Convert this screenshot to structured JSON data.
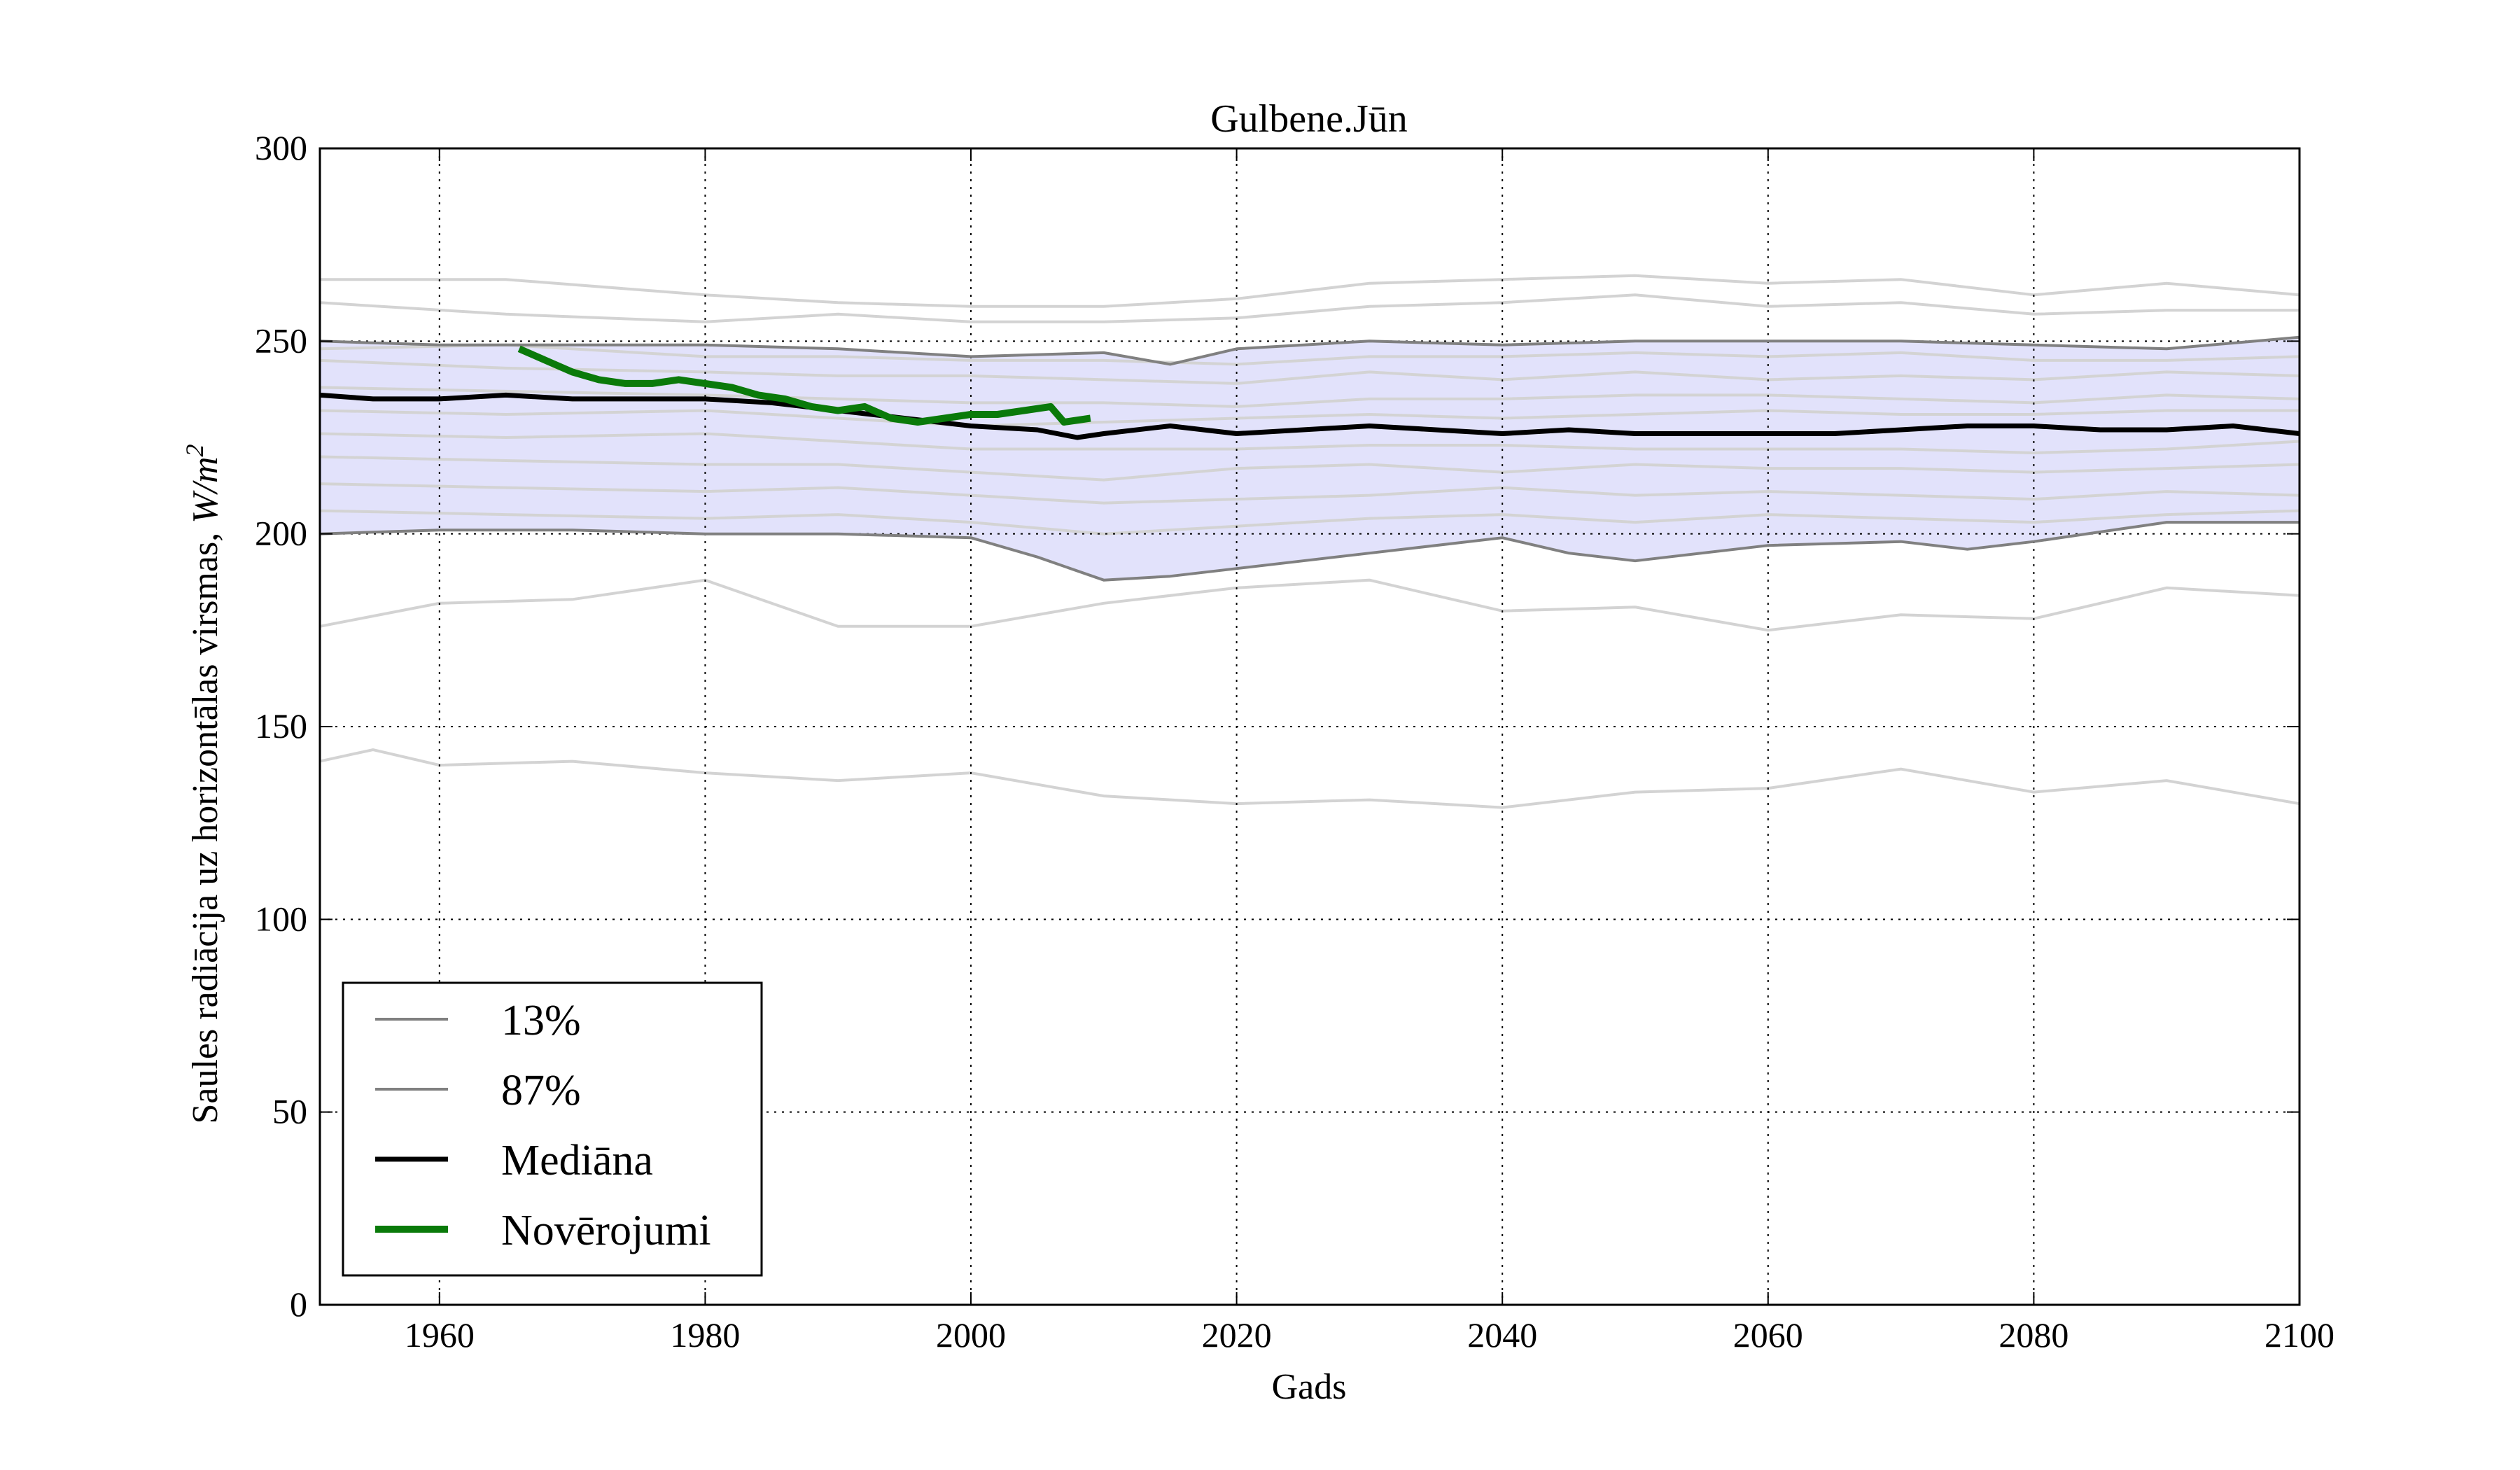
{
  "chart_data": {
    "type": "line",
    "title": "Gulbene.Jūn",
    "xlabel": "Gads",
    "ylabel_text": "Saules radiācija uz horizontālas virsmas, ",
    "ylabel_unit": "W/m",
    "ylabel_unit_sup": "2",
    "xlim": [
      1951,
      2100
    ],
    "ylim": [
      0,
      300
    ],
    "x_ticks": [
      1960,
      1980,
      2000,
      2020,
      2040,
      2060,
      2080,
      2100
    ],
    "y_ticks": [
      0,
      50,
      100,
      150,
      200,
      250,
      300
    ],
    "grid": true,
    "legend_position": "lower-left",
    "legend": [
      "13%",
      "87%",
      "Mediāna",
      "Novērojumi"
    ],
    "colors": {
      "band": "#e2e2fb",
      "percentile": "#808080",
      "median": "#000000",
      "observations": "#0a7a0a",
      "ensemble": "#d3d3d3"
    },
    "series": [
      {
        "name": "87%",
        "x": [
          1951,
          1960,
          1970,
          1980,
          1990,
          2000,
          2010,
          2015,
          2020,
          2030,
          2040,
          2050,
          2060,
          2070,
          2080,
          2090,
          2100
        ],
        "values": [
          250,
          249,
          249,
          249,
          248,
          246,
          247,
          244,
          248,
          250,
          249,
          250,
          250,
          250,
          249,
          248,
          251
        ]
      },
      {
        "name": "13%",
        "x": [
          1951,
          1960,
          1970,
          1980,
          1990,
          2000,
          2005,
          2010,
          2015,
          2020,
          2025,
          2030,
          2040,
          2045,
          2050,
          2060,
          2070,
          2075,
          2080,
          2090,
          2100
        ],
        "values": [
          200,
          201,
          201,
          200,
          200,
          199,
          194,
          188,
          189,
          191,
          193,
          195,
          199,
          195,
          193,
          197,
          198,
          196,
          198,
          203,
          203
        ]
      },
      {
        "name": "Mediāna",
        "x": [
          1951,
          1955,
          1960,
          1965,
          1970,
          1975,
          1980,
          1985,
          1990,
          1995,
          2000,
          2005,
          2008,
          2010,
          2015,
          2020,
          2030,
          2040,
          2045,
          2050,
          2055,
          2060,
          2065,
          2070,
          2075,
          2080,
          2085,
          2090,
          2095,
          2100
        ],
        "values": [
          236,
          235,
          235,
          236,
          235,
          235,
          235,
          234,
          232,
          230,
          228,
          227,
          225,
          226,
          228,
          226,
          228,
          226,
          227,
          226,
          226,
          226,
          226,
          227,
          228,
          228,
          227,
          227,
          228,
          226
        ]
      },
      {
        "name": "Novērojumi",
        "x": [
          1966,
          1968,
          1970,
          1972,
          1974,
          1976,
          1978,
          1980,
          1982,
          1984,
          1986,
          1988,
          1990,
          1992,
          1994,
          1996,
          1998,
          2000,
          2002,
          2004,
          2006,
          2007,
          2009
        ],
        "values": [
          248,
          245,
          242,
          240,
          239,
          239,
          240,
          239,
          238,
          236,
          235,
          233,
          232,
          233,
          230,
          229,
          230,
          231,
          231,
          232,
          233,
          229,
          230
        ]
      }
    ],
    "ensemble": [
      {
        "x": [
          1951,
          1965,
          1980,
          1990,
          2000,
          2010,
          2020,
          2030,
          2040,
          2050,
          2060,
          2070,
          2080,
          2090,
          2100
        ],
        "values": [
          266,
          266,
          262,
          260,
          259,
          259,
          261,
          265,
          266,
          267,
          265,
          266,
          262,
          265,
          262
        ]
      },
      {
        "x": [
          1951,
          1965,
          1980,
          1990,
          2000,
          2010,
          2020,
          2030,
          2040,
          2050,
          2060,
          2070,
          2080,
          2090,
          2100
        ],
        "values": [
          260,
          257,
          255,
          257,
          255,
          255,
          256,
          259,
          260,
          262,
          259,
          260,
          257,
          258,
          258
        ]
      },
      {
        "x": [
          1951,
          1965,
          1980,
          1990,
          2000,
          2010,
          2020,
          2030,
          2040,
          2050,
          2060,
          2070,
          2080,
          2090,
          2100
        ],
        "values": [
          248,
          249,
          246,
          246,
          245,
          245,
          244,
          246,
          246,
          247,
          246,
          247,
          245,
          245,
          246
        ]
      },
      {
        "x": [
          1951,
          1965,
          1980,
          1990,
          2000,
          2010,
          2020,
          2030,
          2040,
          2050,
          2060,
          2070,
          2080,
          2090,
          2100
        ],
        "values": [
          245,
          243,
          242,
          241,
          241,
          240,
          239,
          242,
          240,
          242,
          240,
          241,
          240,
          242,
          241
        ]
      },
      {
        "x": [
          1951,
          1965,
          1980,
          1990,
          2000,
          2010,
          2020,
          2030,
          2040,
          2050,
          2060,
          2070,
          2080,
          2090,
          2100
        ],
        "values": [
          238,
          237,
          236,
          235,
          234,
          234,
          233,
          235,
          235,
          236,
          236,
          235,
          234,
          236,
          235
        ]
      },
      {
        "x": [
          1951,
          1965,
          1980,
          1990,
          2000,
          2010,
          2020,
          2030,
          2040,
          2050,
          2060,
          2070,
          2080,
          2090,
          2100
        ],
        "values": [
          232,
          231,
          232,
          230,
          228,
          229,
          230,
          231,
          230,
          231,
          232,
          231,
          231,
          232,
          232
        ]
      },
      {
        "x": [
          1951,
          1965,
          1980,
          1990,
          2000,
          2010,
          2020,
          2030,
          2040,
          2050,
          2060,
          2070,
          2080,
          2090,
          2100
        ],
        "values": [
          226,
          225,
          226,
          224,
          222,
          222,
          222,
          223,
          223,
          222,
          222,
          222,
          221,
          222,
          224
        ]
      },
      {
        "x": [
          1951,
          1965,
          1980,
          1990,
          2000,
          2010,
          2020,
          2030,
          2040,
          2050,
          2060,
          2070,
          2080,
          2090,
          2100
        ],
        "values": [
          220,
          219,
          218,
          218,
          216,
          214,
          217,
          218,
          216,
          218,
          217,
          217,
          216,
          217,
          218
        ]
      },
      {
        "x": [
          1951,
          1965,
          1980,
          1990,
          2000,
          2010,
          2020,
          2030,
          2040,
          2050,
          2060,
          2070,
          2080,
          2090,
          2100
        ],
        "values": [
          213,
          212,
          211,
          212,
          210,
          208,
          209,
          210,
          212,
          210,
          211,
          210,
          209,
          211,
          210
        ]
      },
      {
        "x": [
          1951,
          1965,
          1980,
          1990,
          2000,
          2010,
          2020,
          2030,
          2040,
          2050,
          2060,
          2070,
          2080,
          2090,
          2100
        ],
        "values": [
          206,
          205,
          204,
          205,
          203,
          200,
          202,
          204,
          205,
          203,
          205,
          204,
          203,
          205,
          206
        ]
      },
      {
        "x": [
          1951,
          1960,
          1970,
          1980,
          1990,
          2000,
          2010,
          2020,
          2030,
          2040,
          2050,
          2060,
          2070,
          2080,
          2090,
          2100
        ],
        "values": [
          176,
          182,
          183,
          188,
          176,
          176,
          182,
          186,
          188,
          180,
          181,
          175,
          179,
          178,
          186,
          184
        ]
      },
      {
        "x": [
          1951,
          1955,
          1960,
          1970,
          1980,
          1990,
          2000,
          2010,
          2020,
          2030,
          2040,
          2050,
          2060,
          2070,
          2080,
          2090,
          2100
        ],
        "values": [
          141,
          144,
          140,
          141,
          138,
          136,
          138,
          132,
          130,
          131,
          129,
          133,
          134,
          139,
          133,
          136,
          130
        ]
      }
    ]
  }
}
